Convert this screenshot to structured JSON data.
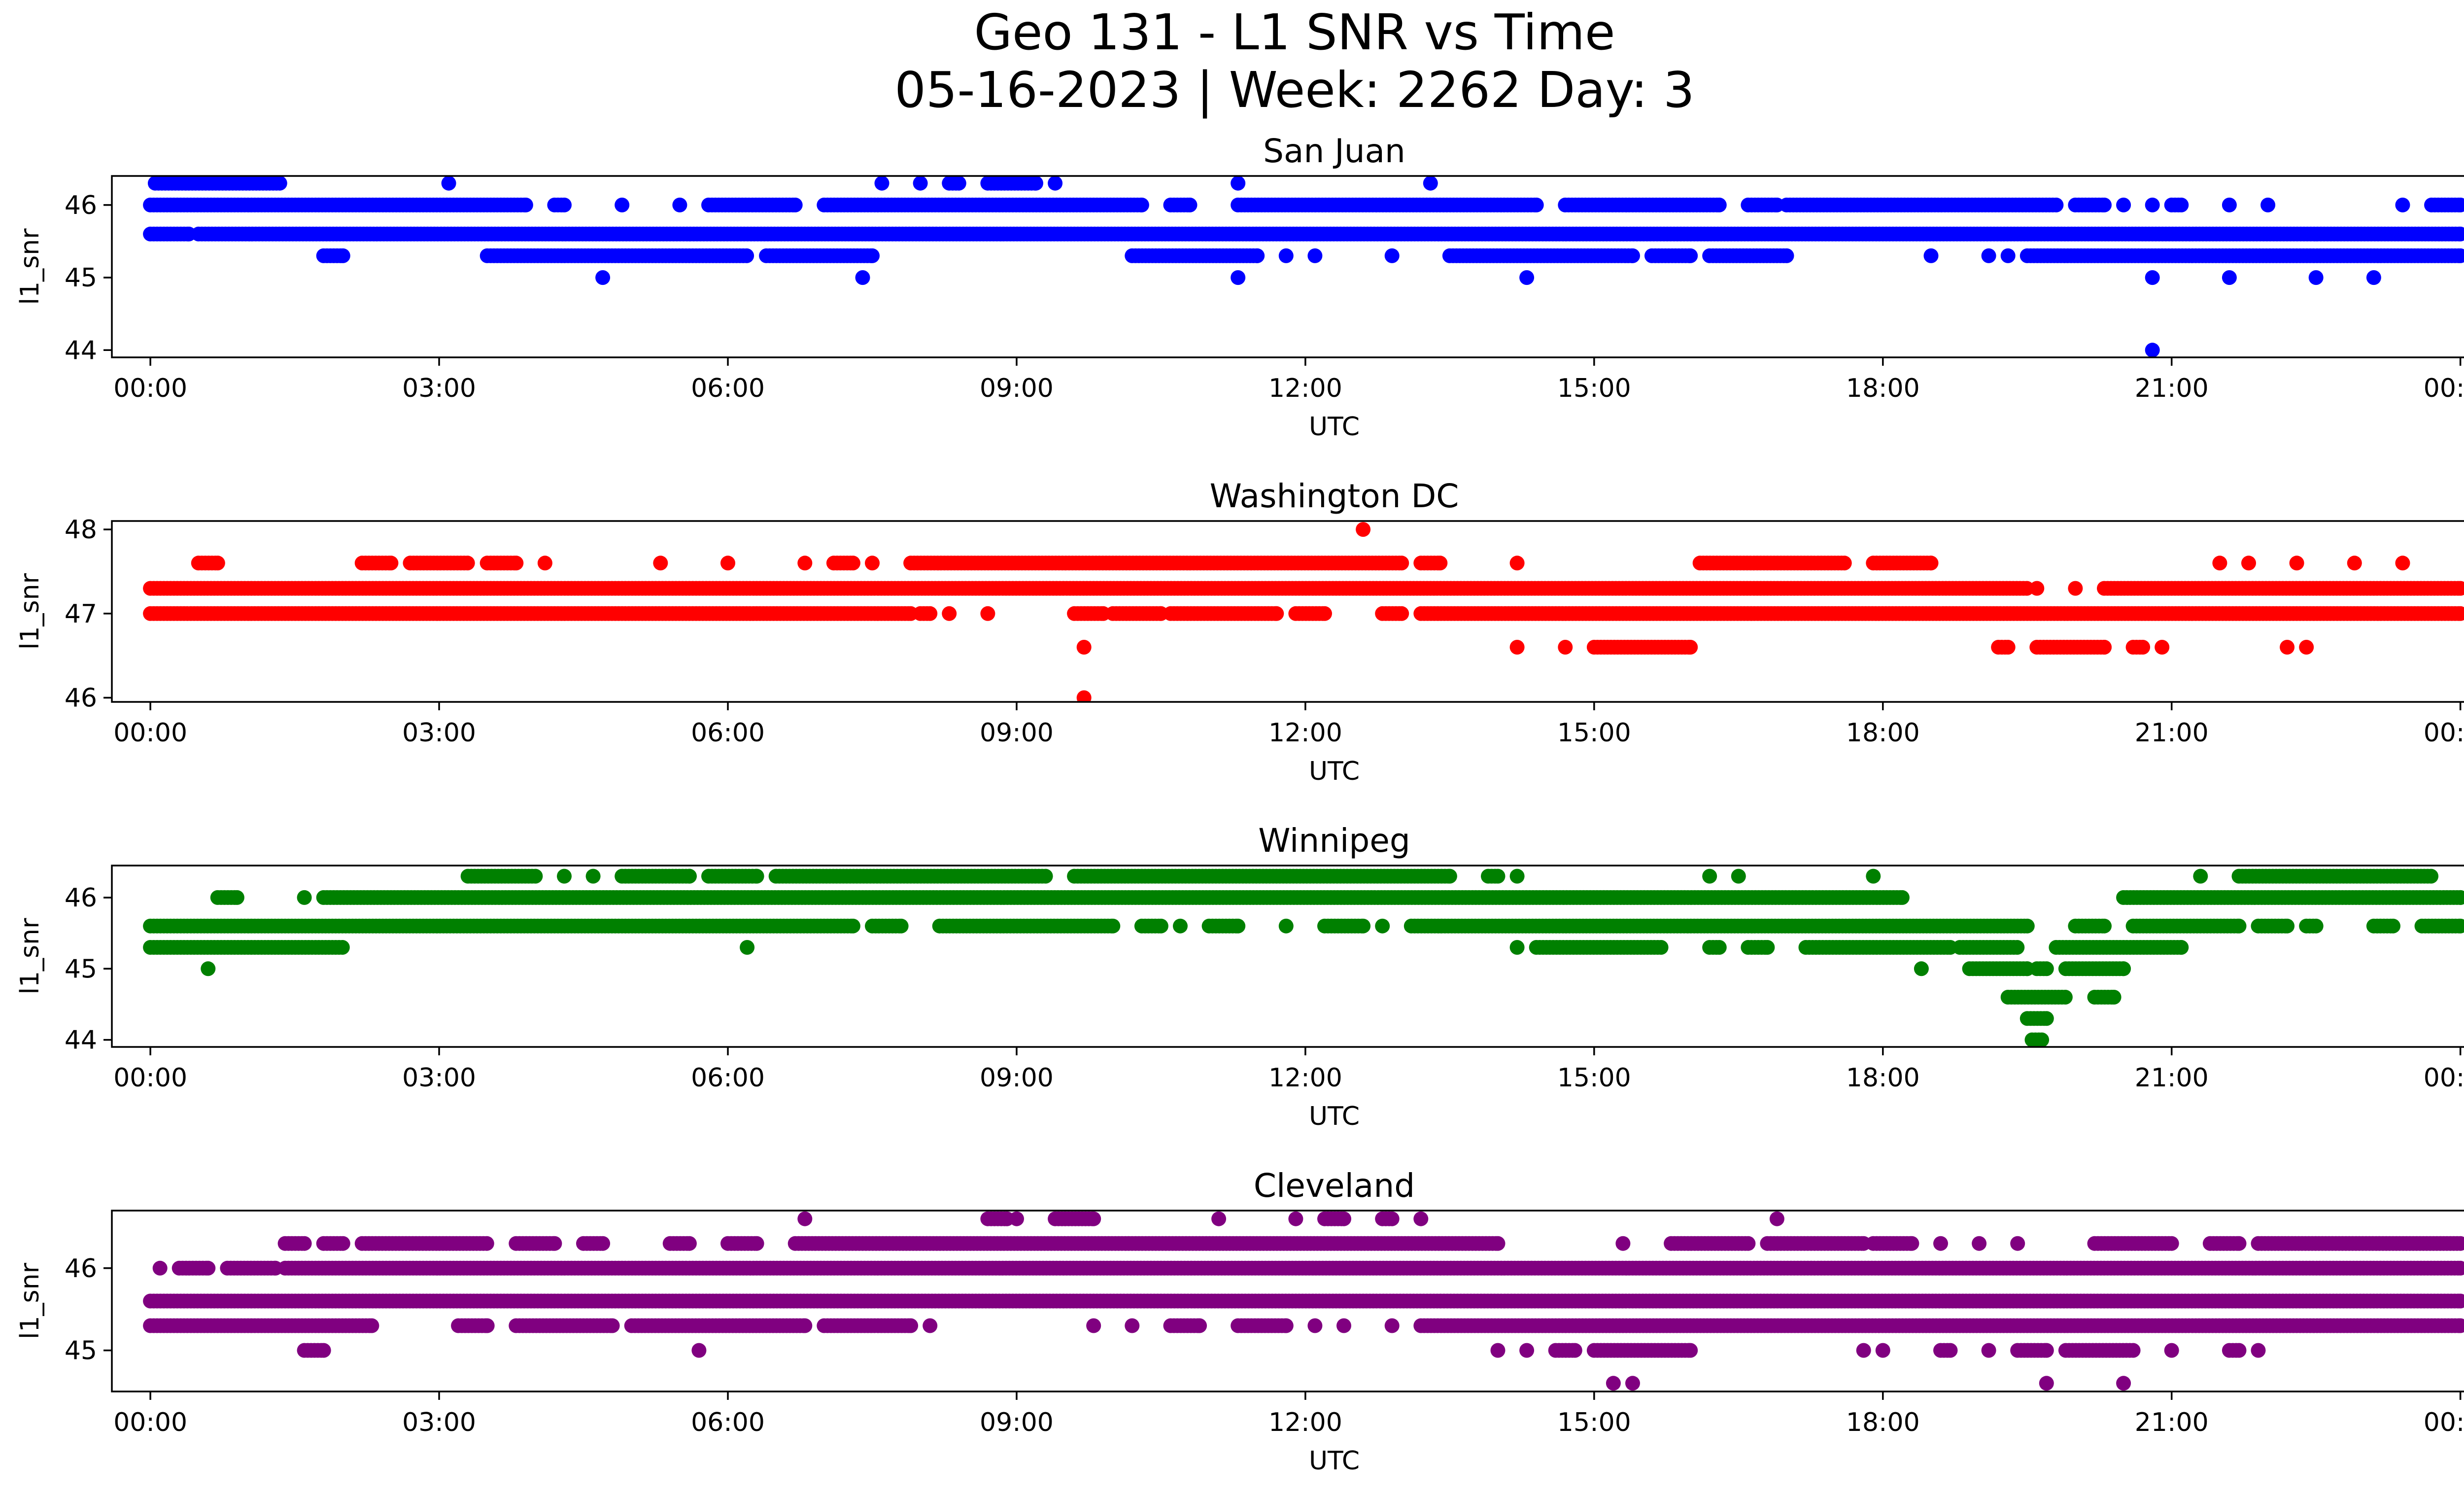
{
  "figure": {
    "title_line1": "Geo 131 - L1 SNR vs Time",
    "title_line2": "05-16-2023 | Week: 2262 Day: 3"
  },
  "chart_data": [
    {
      "type": "scatter",
      "title": "San Juan",
      "xlabel": "UTC",
      "ylabel": "l1_snr",
      "color": "#0000ff",
      "xlim": [
        -0.4,
        25.0
      ],
      "ylim": [
        43.9,
        46.4
      ],
      "xticks": [
        "00:00",
        "03:00",
        "06:00",
        "09:00",
        "12:00",
        "15:00",
        "18:00",
        "21:00",
        "00:00"
      ],
      "yticks": [
        44,
        45,
        46
      ],
      "x_unit": "hours UTC",
      "bands": [
        {
          "y": 46.0,
          "ranges": [
            [
              0.0,
              3.9
            ],
            [
              4.2,
              4.3
            ],
            [
              4.9,
              4.9
            ],
            [
              5.5,
              5.5
            ],
            [
              5.8,
              6.7
            ],
            [
              7.0,
              10.3
            ],
            [
              10.6,
              10.8
            ],
            [
              11.3,
              14.4
            ],
            [
              14.7,
              16.3
            ],
            [
              16.6,
              16.9
            ],
            [
              17.0,
              19.8
            ],
            [
              20.0,
              20.3
            ],
            [
              20.5,
              20.5
            ],
            [
              20.8,
              20.8
            ],
            [
              21.0,
              21.1
            ],
            [
              21.6,
              21.6
            ],
            [
              22.0,
              22.0
            ],
            [
              23.4,
              23.4
            ],
            [
              23.7,
              24.0
            ]
          ]
        },
        {
          "y": 45.6,
          "ranges": [
            [
              0.0,
              0.4
            ],
            [
              0.5,
              24.0
            ]
          ]
        },
        {
          "y": 46.3,
          "ranges": [
            [
              0.05,
              1.35
            ],
            [
              3.1,
              3.1
            ],
            [
              7.6,
              7.6
            ],
            [
              8.0,
              8.0
            ],
            [
              8.3,
              8.4
            ],
            [
              8.7,
              9.2
            ],
            [
              9.4,
              9.4
            ],
            [
              11.3,
              11.3
            ],
            [
              13.3,
              13.3
            ]
          ]
        },
        {
          "y": 45.3,
          "ranges": [
            [
              1.8,
              2.0
            ],
            [
              3.5,
              6.2
            ],
            [
              6.4,
              7.5
            ],
            [
              10.2,
              11.5
            ],
            [
              11.8,
              11.8
            ],
            [
              12.1,
              12.1
            ],
            [
              12.9,
              12.9
            ],
            [
              13.5,
              15.4
            ],
            [
              15.6,
              16.0
            ],
            [
              16.2,
              17.0
            ],
            [
              18.5,
              18.5
            ],
            [
              19.1,
              19.1
            ],
            [
              19.3,
              19.3
            ],
            [
              19.5,
              24.0
            ]
          ]
        }
      ],
      "points": [
        {
          "x": 4.7,
          "y": 45.0
        },
        {
          "x": 7.4,
          "y": 45.0
        },
        {
          "x": 11.3,
          "y": 45.0
        },
        {
          "x": 14.3,
          "y": 45.0
        },
        {
          "x": 20.8,
          "y": 45.0
        },
        {
          "x": 21.6,
          "y": 45.0
        },
        {
          "x": 22.5,
          "y": 45.0
        },
        {
          "x": 23.1,
          "y": 45.0
        },
        {
          "x": 20.8,
          "y": 44.0
        }
      ]
    },
    {
      "type": "scatter",
      "title": "Washington DC",
      "xlabel": "UTC",
      "ylabel": "l1_snr",
      "color": "#ff0000",
      "xlim": [
        -0.4,
        25.0
      ],
      "ylim": [
        45.95,
        48.1
      ],
      "xticks": [
        "00:00",
        "03:00",
        "06:00",
        "09:00",
        "12:00",
        "15:00",
        "18:00",
        "21:00",
        "00:00"
      ],
      "yticks": [
        46,
        47,
        48
      ],
      "x_unit": "hours UTC",
      "bands": [
        {
          "y": 47.3,
          "ranges": [
            [
              0.0,
              19.5
            ],
            [
              19.6,
              19.6
            ],
            [
              20.0,
              20.0
            ],
            [
              20.3,
              24.0
            ]
          ]
        },
        {
          "y": 47.0,
          "ranges": [
            [
              0.0,
              7.9
            ],
            [
              8.0,
              8.1
            ],
            [
              8.3,
              8.3
            ],
            [
              8.7,
              8.7
            ],
            [
              9.6,
              9.9
            ],
            [
              10.0,
              10.5
            ],
            [
              10.6,
              11.7
            ],
            [
              11.9,
              12.2
            ],
            [
              12.8,
              13.0
            ],
            [
              13.2,
              24.0
            ]
          ]
        },
        {
          "y": 47.6,
          "ranges": [
            [
              0.5,
              0.7
            ],
            [
              2.2,
              2.5
            ],
            [
              2.7,
              3.3
            ],
            [
              3.5,
              3.8
            ],
            [
              4.1,
              4.1
            ],
            [
              5.3,
              5.3
            ],
            [
              6.0,
              6.0
            ],
            [
              6.8,
              6.8
            ],
            [
              7.1,
              7.3
            ],
            [
              7.5,
              7.5
            ],
            [
              7.9,
              13.0
            ],
            [
              13.2,
              13.4
            ],
            [
              14.2,
              14.2
            ],
            [
              16.1,
              17.6
            ],
            [
              17.9,
              18.5
            ],
            [
              21.5,
              21.5
            ],
            [
              21.8,
              21.8
            ],
            [
              22.3,
              22.3
            ],
            [
              22.9,
              22.9
            ],
            [
              23.4,
              23.4
            ]
          ]
        },
        {
          "y": 46.6,
          "ranges": [
            [
              9.7,
              9.7
            ],
            [
              14.2,
              14.2
            ],
            [
              14.7,
              14.7
            ],
            [
              15.0,
              16.0
            ],
            [
              19.2,
              19.3
            ],
            [
              19.6,
              20.3
            ],
            [
              20.6,
              20.7
            ],
            [
              20.9,
              20.9
            ],
            [
              22.2,
              22.2
            ],
            [
              22.4,
              22.4
            ]
          ]
        }
      ],
      "points": [
        {
          "x": 12.6,
          "y": 48.0
        },
        {
          "x": 9.7,
          "y": 46.0
        }
      ]
    },
    {
      "type": "scatter",
      "title": "Winnipeg",
      "xlabel": "UTC",
      "ylabel": "l1_snr",
      "color": "#008000",
      "xlim": [
        -0.4,
        25.0
      ],
      "ylim": [
        43.9,
        46.45
      ],
      "xticks": [
        "00:00",
        "03:00",
        "06:00",
        "09:00",
        "12:00",
        "15:00",
        "18:00",
        "21:00",
        "00:00"
      ],
      "yticks": [
        44,
        45,
        46
      ],
      "x_unit": "hours UTC",
      "bands": [
        {
          "y": 45.6,
          "ranges": [
            [
              0.0,
              7.3
            ],
            [
              7.5,
              7.8
            ],
            [
              8.2,
              10.0
            ],
            [
              10.3,
              10.5
            ],
            [
              10.7,
              10.7
            ],
            [
              11.0,
              11.3
            ],
            [
              11.8,
              11.8
            ],
            [
              12.2,
              12.6
            ],
            [
              12.8,
              12.8
            ],
            [
              13.1,
              19.5
            ],
            [
              20.0,
              20.3
            ],
            [
              20.6,
              21.7
            ],
            [
              21.9,
              22.2
            ],
            [
              22.4,
              22.5
            ],
            [
              23.1,
              23.3
            ],
            [
              23.6,
              24.0
            ]
          ]
        },
        {
          "y": 45.3,
          "ranges": [
            [
              0.0,
              2.0
            ],
            [
              6.2,
              6.2
            ],
            [
              14.2,
              14.2
            ],
            [
              14.4,
              15.7
            ],
            [
              16.2,
              16.3
            ],
            [
              16.6,
              16.8
            ],
            [
              17.2,
              18.7
            ],
            [
              18.8,
              19.4
            ],
            [
              19.8,
              21.1
            ]
          ]
        },
        {
          "y": 46.0,
          "ranges": [
            [
              0.7,
              0.9
            ],
            [
              1.6,
              1.6
            ],
            [
              1.8,
              18.2
            ],
            [
              20.5,
              24.0
            ]
          ]
        },
        {
          "y": 46.3,
          "ranges": [
            [
              3.3,
              4.0
            ],
            [
              4.3,
              4.3
            ],
            [
              4.6,
              4.6
            ],
            [
              4.9,
              5.6
            ],
            [
              5.8,
              6.3
            ],
            [
              6.5,
              9.3
            ],
            [
              9.6,
              13.5
            ],
            [
              13.9,
              14.0
            ],
            [
              14.2,
              14.2
            ],
            [
              16.2,
              16.2
            ],
            [
              16.5,
              16.5
            ],
            [
              17.9,
              17.9
            ],
            [
              21.3,
              21.3
            ],
            [
              21.7,
              23.7
            ]
          ]
        },
        {
          "y": 45.0,
          "ranges": [
            [
              0.6,
              0.6
            ],
            [
              18.4,
              18.4
            ],
            [
              18.9,
              19.5
            ],
            [
              19.6,
              19.7
            ],
            [
              19.9,
              20.5
            ]
          ]
        },
        {
          "y": 44.6,
          "ranges": [
            [
              19.3,
              19.9
            ],
            [
              20.2,
              20.4
            ]
          ]
        },
        {
          "y": 44.3,
          "ranges": [
            [
              19.5,
              19.7
            ]
          ]
        },
        {
          "y": 44.0,
          "ranges": [
            [
              19.55,
              19.65
            ]
          ]
        }
      ],
      "points": []
    },
    {
      "type": "scatter",
      "title": "Cleveland",
      "xlabel": "UTC",
      "ylabel": "l1_snr",
      "color": "#800080",
      "xlim": [
        -0.4,
        25.0
      ],
      "ylim": [
        44.5,
        46.7
      ],
      "xticks": [
        "00:00",
        "03:00",
        "06:00",
        "09:00",
        "12:00",
        "15:00",
        "18:00",
        "21:00",
        "00:00"
      ],
      "yticks": [
        45,
        46
      ],
      "x_unit": "hours UTC",
      "bands": [
        {
          "y": 45.6,
          "ranges": [
            [
              0.0,
              24.0
            ]
          ]
        },
        {
          "y": 45.3,
          "ranges": [
            [
              0.0,
              2.3
            ],
            [
              3.2,
              3.5
            ],
            [
              3.8,
              4.8
            ],
            [
              5.0,
              6.8
            ],
            [
              7.0,
              7.9
            ],
            [
              8.1,
              8.1
            ],
            [
              9.8,
              9.8
            ],
            [
              10.2,
              10.2
            ],
            [
              10.6,
              10.9
            ],
            [
              11.3,
              11.8
            ],
            [
              12.1,
              12.1
            ],
            [
              12.4,
              12.4
            ],
            [
              12.9,
              12.9
            ],
            [
              13.2,
              24.0
            ]
          ]
        },
        {
          "y": 46.0,
          "ranges": [
            [
              0.1,
              0.1
            ],
            [
              0.3,
              0.6
            ],
            [
              0.8,
              1.3
            ],
            [
              1.4,
              24.0
            ]
          ]
        },
        {
          "y": 46.3,
          "ranges": [
            [
              1.4,
              1.6
            ],
            [
              1.8,
              2.0
            ],
            [
              2.2,
              3.5
            ],
            [
              3.8,
              4.2
            ],
            [
              4.5,
              4.7
            ],
            [
              5.4,
              5.6
            ],
            [
              6.0,
              6.3
            ],
            [
              6.7,
              14.0
            ],
            [
              15.3,
              15.3
            ],
            [
              15.8,
              16.6
            ],
            [
              16.8,
              17.8
            ],
            [
              17.9,
              18.3
            ],
            [
              18.6,
              18.6
            ],
            [
              19.0,
              19.0
            ],
            [
              19.4,
              19.4
            ],
            [
              20.2,
              21.0
            ],
            [
              21.4,
              21.7
            ],
            [
              21.9,
              24.0
            ]
          ]
        },
        {
          "y": 45.0,
          "ranges": [
            [
              1.6,
              1.8
            ],
            [
              5.7,
              5.7
            ],
            [
              14.0,
              14.0
            ],
            [
              14.3,
              14.3
            ],
            [
              14.6,
              14.8
            ],
            [
              15.0,
              16.0
            ],
            [
              17.8,
              17.8
            ],
            [
              18.0,
              18.0
            ],
            [
              18.6,
              18.7
            ],
            [
              19.1,
              19.1
            ],
            [
              19.4,
              19.7
            ],
            [
              19.9,
              20.6
            ],
            [
              21.0,
              21.0
            ],
            [
              21.6,
              21.7
            ],
            [
              21.9,
              21.9
            ]
          ]
        },
        {
          "y": 46.6,
          "ranges": [
            [
              6.8,
              6.8
            ],
            [
              8.7,
              8.9
            ],
            [
              9.0,
              9.0
            ],
            [
              9.4,
              9.8
            ],
            [
              11.1,
              11.1
            ],
            [
              11.9,
              11.9
            ],
            [
              12.2,
              12.4
            ],
            [
              12.8,
              12.9
            ],
            [
              13.2,
              13.2
            ],
            [
              16.9,
              16.9
            ]
          ]
        }
      ],
      "points": [
        {
          "x": 15.2,
          "y": 44.6
        },
        {
          "x": 15.4,
          "y": 44.6
        },
        {
          "x": 19.7,
          "y": 44.6
        },
        {
          "x": 20.5,
          "y": 44.6
        }
      ]
    }
  ]
}
